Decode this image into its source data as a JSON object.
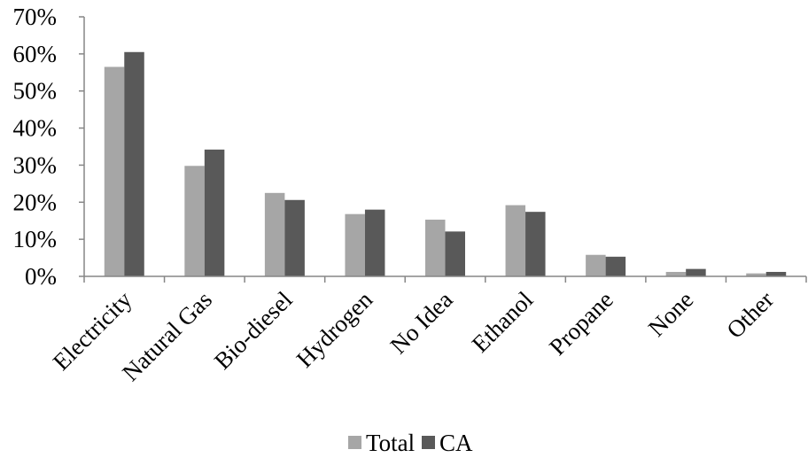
{
  "chart_data": {
    "type": "bar",
    "categories": [
      "Electricity",
      "Natural Gas",
      "Bio-diesel",
      "Hydrogen",
      "No Idea",
      "Ethanol",
      "Propane",
      "None",
      "Other"
    ],
    "series": [
      {
        "name": "Total",
        "values": [
          56.5,
          29.8,
          22.5,
          16.8,
          15.3,
          19.2,
          5.8,
          1.2,
          0.8
        ],
        "color": "#a6a6a6"
      },
      {
        "name": "CA",
        "values": [
          60.5,
          34.2,
          20.6,
          18.0,
          12.1,
          17.4,
          5.3,
          2.0,
          1.2
        ],
        "color": "#595959"
      }
    ],
    "yticks": [
      "0%",
      "10%",
      "20%",
      "30%",
      "40%",
      "50%",
      "60%",
      "70%"
    ],
    "ylim": [
      0,
      70
    ],
    "title": "",
    "xlabel": "",
    "ylabel": "",
    "grid": false,
    "legend_position": "bottom"
  }
}
